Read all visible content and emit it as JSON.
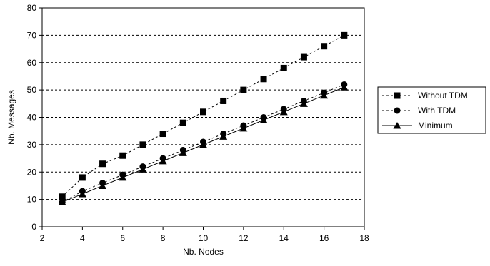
{
  "chart_data": {
    "type": "line",
    "title": "",
    "xlabel": "Nb. Nodes",
    "ylabel": "Nb. Messages",
    "xlim": [
      2,
      18
    ],
    "ylim": [
      0,
      80
    ],
    "xticks": [
      2,
      4,
      6,
      8,
      10,
      12,
      14,
      16,
      18
    ],
    "yticks": [
      0,
      10,
      20,
      30,
      40,
      50,
      60,
      70,
      80
    ],
    "grid": "horizontal dashed",
    "legend_position": "right",
    "x": [
      3,
      4,
      5,
      6,
      7,
      8,
      9,
      10,
      11,
      12,
      13,
      14,
      15,
      16,
      17
    ],
    "series": [
      {
        "name": "Without TDM",
        "marker": "square",
        "line": "dashed",
        "values": [
          11,
          18,
          23,
          26,
          30,
          34,
          38,
          42,
          46,
          50,
          54,
          58,
          62,
          66,
          70
        ]
      },
      {
        "name": "With TDM",
        "marker": "circle",
        "line": "dashed",
        "values": [
          9,
          13,
          16,
          19,
          22,
          25,
          28,
          31,
          34,
          37,
          40,
          43,
          46,
          49,
          52
        ]
      },
      {
        "name": "Minimum",
        "marker": "triangle",
        "line": "solid",
        "values": [
          9,
          12,
          15,
          18,
          21,
          24,
          27,
          30,
          33,
          36,
          39,
          42,
          45,
          48,
          51
        ]
      }
    ]
  }
}
